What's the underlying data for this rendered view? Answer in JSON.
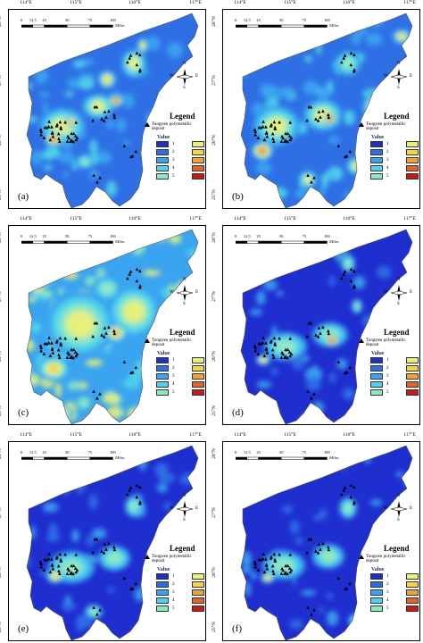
{
  "axes": {
    "lon_labels": [
      "114°E",
      "115°E",
      "116°E",
      "117°E"
    ],
    "lat_labels": [
      "28°N",
      "27°N",
      "26°N",
      "25°N"
    ]
  },
  "scale": {
    "ticks": [
      "0",
      "12.5",
      "25",
      "50",
      "75",
      "100"
    ],
    "unit": "Miles"
  },
  "north": {
    "N": "N",
    "S": "S",
    "E": "E",
    "W": "W"
  },
  "legend": {
    "title": "Legend",
    "deposit_label": "Tungsten polymetallic deposit",
    "value_title": "Value",
    "items": [
      {
        "label": "1",
        "color": "#1f2ecf"
      },
      {
        "label": "2",
        "color": "#2e6fe6"
      },
      {
        "label": "3",
        "color": "#3aa4f0"
      },
      {
        "label": "4",
        "color": "#4fd3ec"
      },
      {
        "label": "5",
        "color": "#8de8c2"
      },
      {
        "label": "6",
        "color": "#e6f07a"
      },
      {
        "label": "7",
        "color": "#f5d44a"
      },
      {
        "label": "8",
        "color": "#f3a23a"
      },
      {
        "label": "9",
        "color": "#e8602a"
      },
      {
        "label": "10",
        "color": "#c41a1a"
      }
    ]
  },
  "panels": [
    {
      "label": "(a)"
    },
    {
      "label": "(b)"
    },
    {
      "label": "(c)"
    },
    {
      "label": "(d)"
    },
    {
      "label": "(e)"
    },
    {
      "label": "(f)"
    }
  ]
}
